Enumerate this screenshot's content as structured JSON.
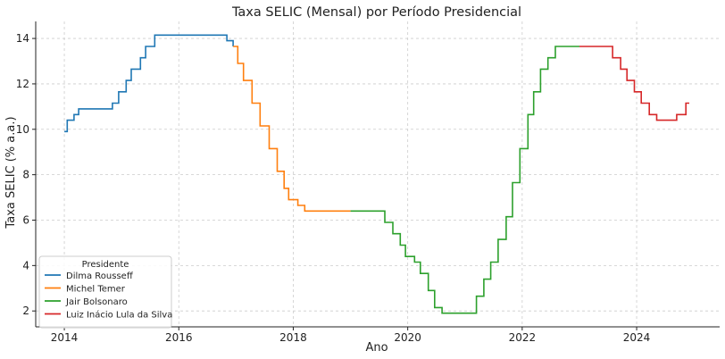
{
  "chart_data": {
    "type": "line",
    "title": "Taxa SELIC (Mensal) por Período Presidencial",
    "xlabel": "Ano",
    "ylabel": "Taxa SELIC (% a.a.)",
    "xlim": [
      2013.5,
      2025.45
    ],
    "ylim": [
      1.3,
      14.75
    ],
    "xticks": [
      2014,
      2016,
      2018,
      2020,
      2022,
      2024
    ],
    "yticks": [
      2,
      4,
      6,
      8,
      10,
      12,
      14
    ],
    "grid": true,
    "step": true,
    "legend": {
      "title": "Presidente",
      "position": "lower-left"
    },
    "series": [
      {
        "name": "Dilma Rousseff",
        "color": "#1f77b4",
        "points": [
          [
            2014.0,
            9.9
          ],
          [
            2014.05,
            10.4
          ],
          [
            2014.17,
            10.65
          ],
          [
            2014.25,
            10.9
          ],
          [
            2014.84,
            11.15
          ],
          [
            2014.95,
            11.65
          ],
          [
            2015.08,
            12.15
          ],
          [
            2015.17,
            12.65
          ],
          [
            2015.33,
            13.15
          ],
          [
            2015.42,
            13.65
          ],
          [
            2015.58,
            14.15
          ],
          [
            2016.78,
            14.15
          ],
          [
            2016.84,
            13.9
          ],
          [
            2016.95,
            13.65
          ]
        ]
      },
      {
        "name": "Michel Temer",
        "color": "#ff7f0e",
        "points": [
          [
            2016.95,
            13.65
          ],
          [
            2017.03,
            12.9
          ],
          [
            2017.13,
            12.15
          ],
          [
            2017.28,
            11.15
          ],
          [
            2017.42,
            10.15
          ],
          [
            2017.58,
            9.15
          ],
          [
            2017.72,
            8.15
          ],
          [
            2017.84,
            7.4
          ],
          [
            2017.92,
            6.9
          ],
          [
            2018.08,
            6.65
          ],
          [
            2018.2,
            6.4
          ],
          [
            2019.0,
            6.4
          ]
        ]
      },
      {
        "name": "Jair Bolsonaro",
        "color": "#2ca02c",
        "points": [
          [
            2019.0,
            6.4
          ],
          [
            2019.6,
            5.9
          ],
          [
            2019.74,
            5.4
          ],
          [
            2019.87,
            4.9
          ],
          [
            2019.96,
            4.4
          ],
          [
            2020.12,
            4.15
          ],
          [
            2020.22,
            3.65
          ],
          [
            2020.36,
            2.9
          ],
          [
            2020.47,
            2.15
          ],
          [
            2020.6,
            1.9
          ],
          [
            2021.2,
            2.65
          ],
          [
            2021.33,
            3.4
          ],
          [
            2021.45,
            4.15
          ],
          [
            2021.58,
            5.15
          ],
          [
            2021.72,
            6.15
          ],
          [
            2021.83,
            7.65
          ],
          [
            2021.96,
            9.15
          ],
          [
            2022.1,
            10.65
          ],
          [
            2022.2,
            11.65
          ],
          [
            2022.32,
            12.65
          ],
          [
            2022.45,
            13.15
          ],
          [
            2022.58,
            13.65
          ],
          [
            2023.0,
            13.65
          ]
        ]
      },
      {
        "name": "Luiz Inácio Lula da Silva",
        "color": "#d62728",
        "points": [
          [
            2023.0,
            13.65
          ],
          [
            2023.58,
            13.15
          ],
          [
            2023.72,
            12.65
          ],
          [
            2023.83,
            12.15
          ],
          [
            2023.96,
            11.65
          ],
          [
            2024.08,
            11.15
          ],
          [
            2024.22,
            10.65
          ],
          [
            2024.35,
            10.4
          ],
          [
            2024.7,
            10.65
          ],
          [
            2024.86,
            11.15
          ],
          [
            2024.92,
            11.15
          ]
        ]
      }
    ]
  }
}
